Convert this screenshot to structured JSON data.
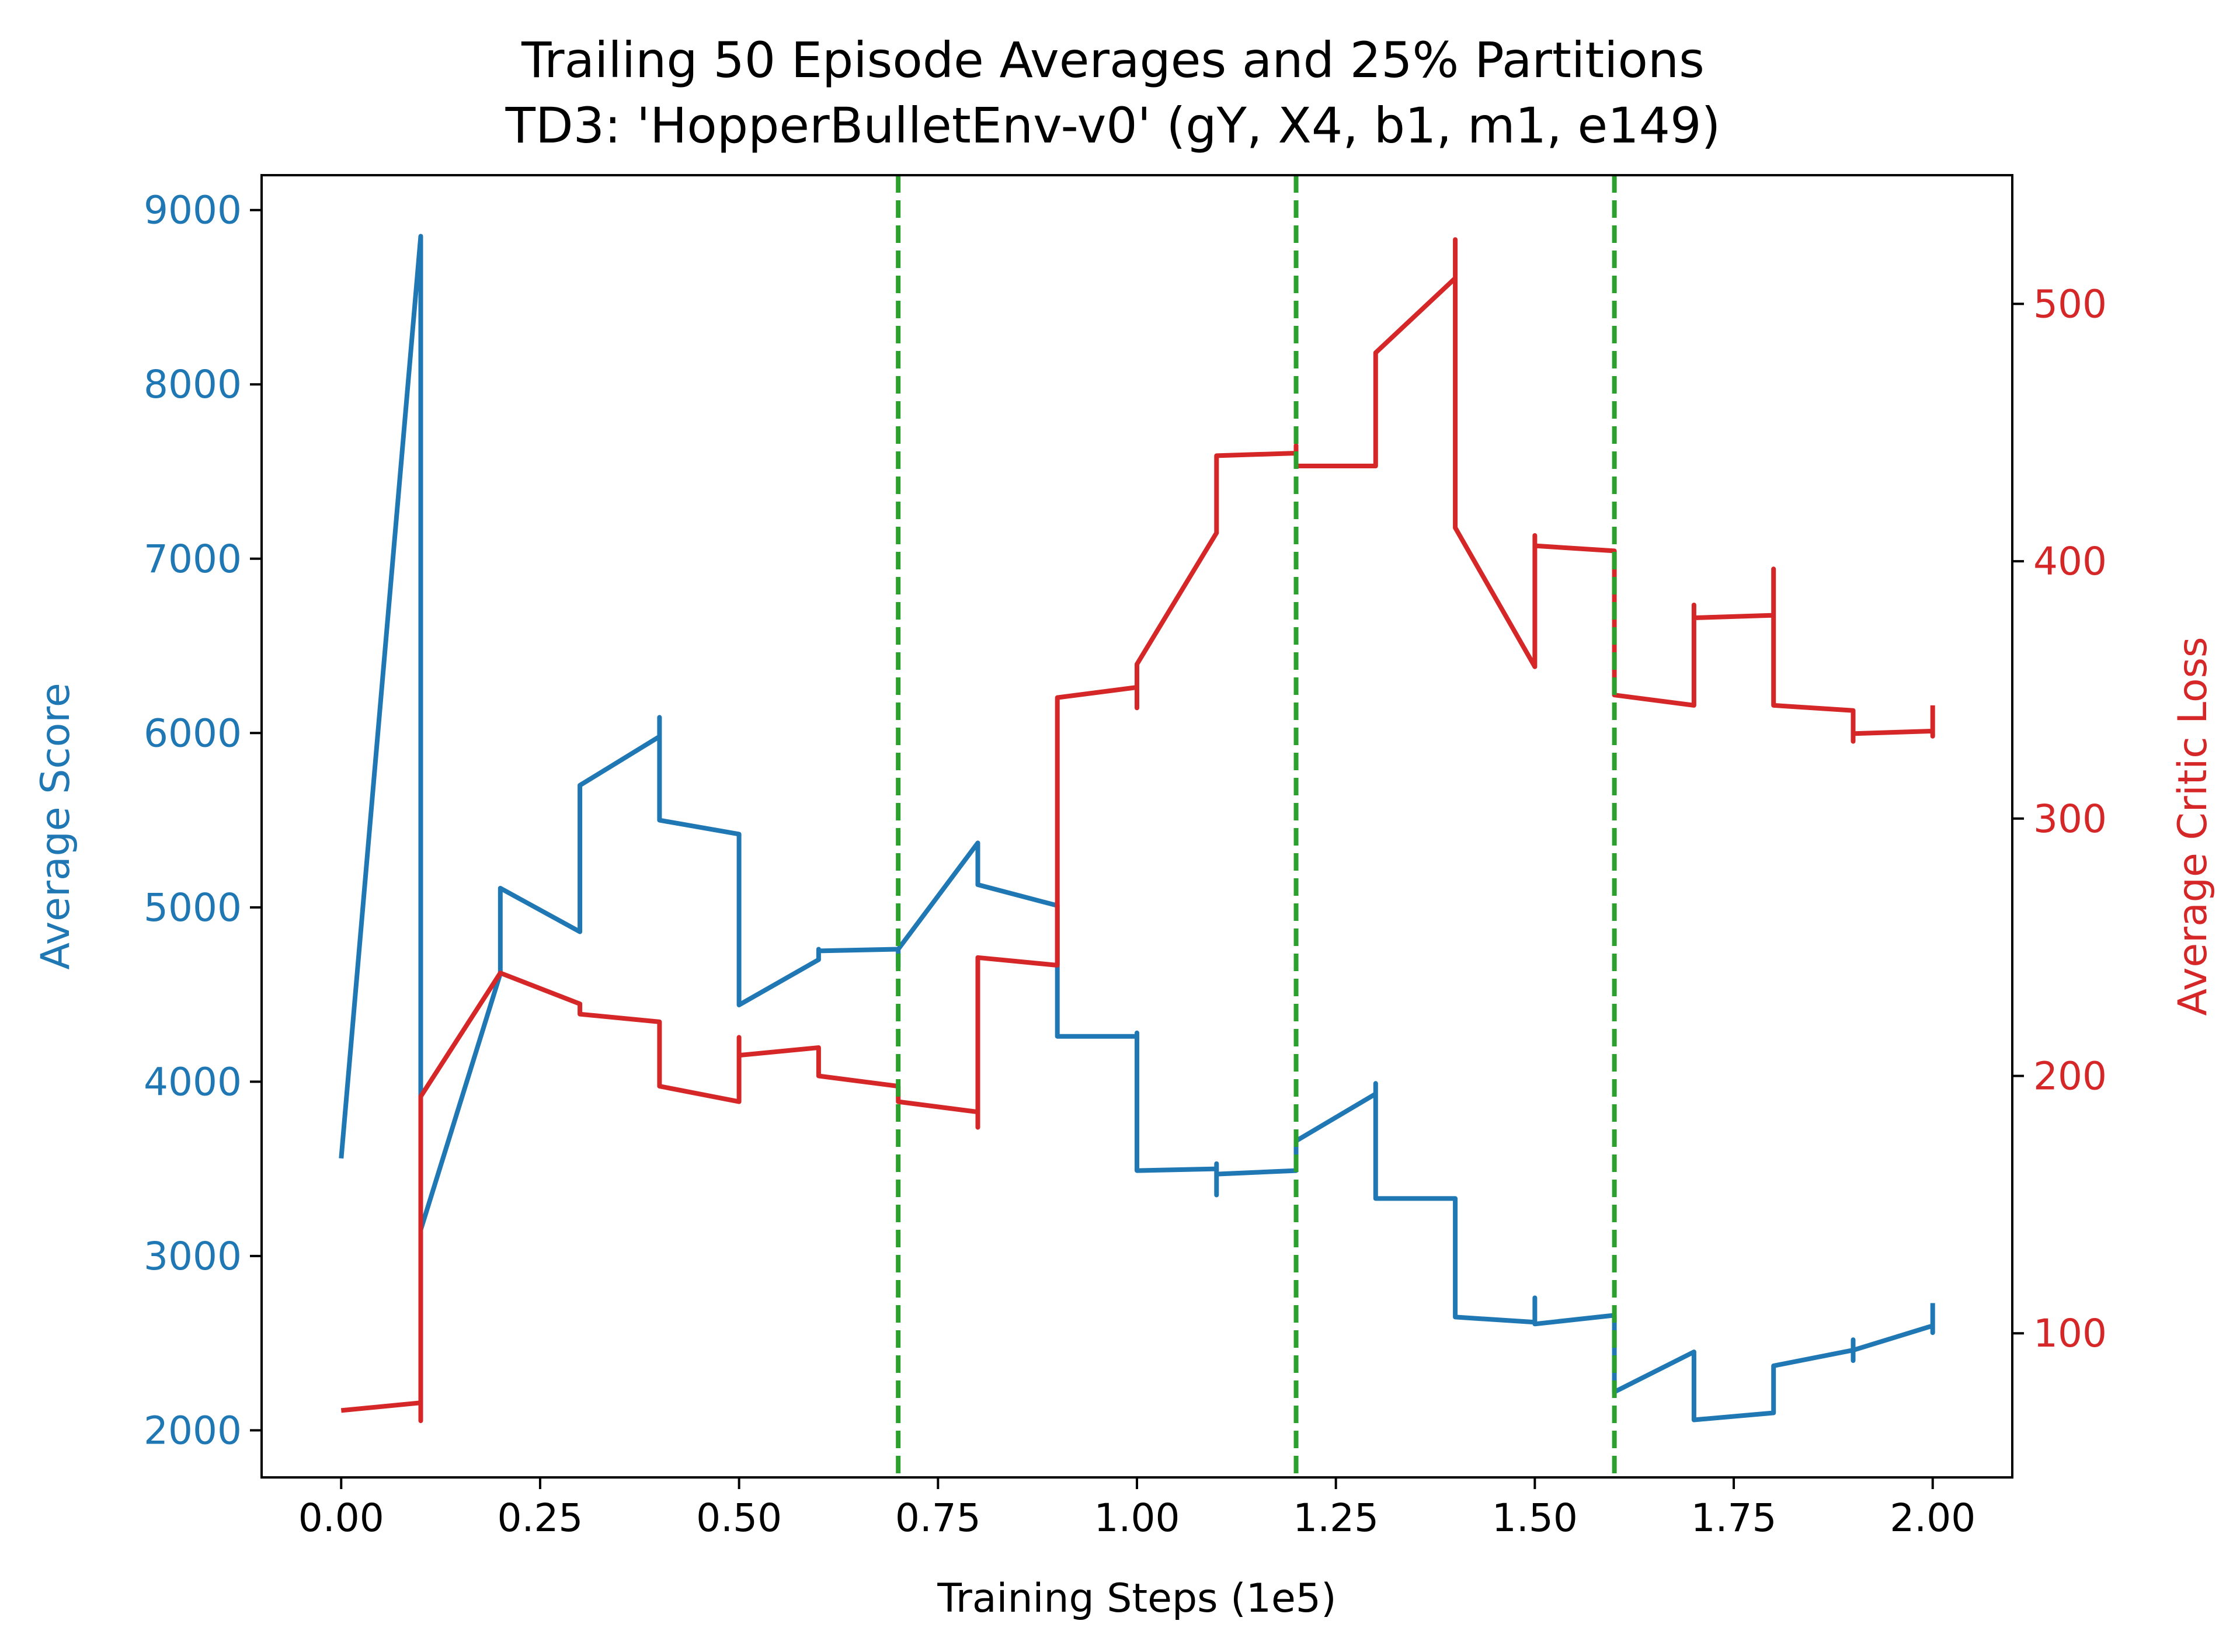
{
  "chart_data": {
    "type": "line",
    "title": "Trailing 50 Episode Averages and 25% Partitions",
    "subtitle": "TD3: 'HopperBulletEnv-v0' (gY, X4, b1, m1, e149)",
    "xlabel": "Training Steps (1e5)",
    "ylabel_left": "Average Score",
    "ylabel_right": "Average Critic Loss",
    "xlim": [
      -0.1,
      2.1
    ],
    "ylim_left": [
      1730,
      9200
    ],
    "ylim_right": [
      44,
      550
    ],
    "x_ticks": [
      "0.00",
      "0.25",
      "0.50",
      "0.75",
      "1.00",
      "1.25",
      "1.50",
      "1.75",
      "2.00"
    ],
    "y_ticks_left": [
      "2000",
      "3000",
      "4000",
      "5000",
      "6000",
      "7000",
      "8000",
      "9000"
    ],
    "y_ticks_right": [
      "100",
      "200",
      "300",
      "400",
      "500"
    ],
    "partitions": [
      0.7,
      1.2,
      1.6
    ],
    "colors": {
      "score": "#1f77b4",
      "loss": "#d62728",
      "partition": "#2ca02c",
      "axis": "#000000"
    },
    "series": [
      {
        "name": "Average Score",
        "axis": "left",
        "points": [
          [
            0.0,
            3560
          ],
          [
            0.1,
            8850
          ],
          [
            0.1,
            3150
          ],
          [
            0.2,
            4620
          ],
          [
            0.2,
            5110
          ],
          [
            0.3,
            4860
          ],
          [
            0.3,
            5700
          ],
          [
            0.4,
            5980
          ],
          [
            0.4,
            6090
          ],
          [
            0.4,
            5500
          ],
          [
            0.5,
            5420
          ],
          [
            0.5,
            4440
          ],
          [
            0.6,
            4700
          ],
          [
            0.6,
            4760
          ],
          [
            0.6,
            4750
          ],
          [
            0.7,
            4760
          ],
          [
            0.7,
            4660
          ],
          [
            0.7,
            4760
          ],
          [
            0.8,
            5370
          ],
          [
            0.8,
            5130
          ],
          [
            0.9,
            5010
          ],
          [
            0.9,
            4260
          ],
          [
            1.0,
            4260
          ],
          [
            1.0,
            4280
          ],
          [
            1.0,
            3490
          ],
          [
            1.1,
            3500
          ],
          [
            1.1,
            3350
          ],
          [
            1.1,
            3530
          ],
          [
            1.1,
            3470
          ],
          [
            1.2,
            3490
          ],
          [
            1.2,
            3660
          ],
          [
            1.3,
            3930
          ],
          [
            1.3,
            3990
          ],
          [
            1.3,
            3330
          ],
          [
            1.4,
            3330
          ],
          [
            1.4,
            2650
          ],
          [
            1.5,
            2620
          ],
          [
            1.5,
            2760
          ],
          [
            1.5,
            2610
          ],
          [
            1.6,
            2660
          ],
          [
            1.6,
            2220
          ],
          [
            1.7,
            2450
          ],
          [
            1.7,
            2060
          ],
          [
            1.8,
            2100
          ],
          [
            1.8,
            2370
          ],
          [
            1.9,
            2460
          ],
          [
            1.9,
            2400
          ],
          [
            1.9,
            2520
          ],
          [
            1.9,
            2460
          ],
          [
            2.0,
            2600
          ],
          [
            2.0,
            2560
          ],
          [
            2.0,
            2730
          ]
        ]
      },
      {
        "name": "Average Critic Loss",
        "axis": "right",
        "points": [
          [
            0.0,
            70
          ],
          [
            0.1,
            73
          ],
          [
            0.1,
            66
          ],
          [
            0.1,
            192
          ],
          [
            0.2,
            240
          ],
          [
            0.3,
            228
          ],
          [
            0.3,
            224
          ],
          [
            0.4,
            221
          ],
          [
            0.4,
            196
          ],
          [
            0.5,
            190
          ],
          [
            0.5,
            215
          ],
          [
            0.5,
            208
          ],
          [
            0.6,
            211
          ],
          [
            0.6,
            200
          ],
          [
            0.7,
            196
          ],
          [
            0.7,
            190
          ],
          [
            0.8,
            186
          ],
          [
            0.8,
            180
          ],
          [
            0.8,
            246
          ],
          [
            0.9,
            243
          ],
          [
            0.9,
            347
          ],
          [
            1.0,
            351
          ],
          [
            1.0,
            343
          ],
          [
            1.0,
            360
          ],
          [
            1.1,
            411
          ],
          [
            1.1,
            441
          ],
          [
            1.2,
            442
          ],
          [
            1.2,
            445
          ],
          [
            1.2,
            437
          ],
          [
            1.3,
            437
          ],
          [
            1.3,
            481
          ],
          [
            1.4,
            510
          ],
          [
            1.4,
            525
          ],
          [
            1.4,
            413
          ],
          [
            1.5,
            359
          ],
          [
            1.5,
            410
          ],
          [
            1.5,
            406
          ],
          [
            1.6,
            404
          ],
          [
            1.6,
            348
          ],
          [
            1.7,
            344
          ],
          [
            1.7,
            383
          ],
          [
            1.7,
            378
          ],
          [
            1.8,
            379
          ],
          [
            1.8,
            397
          ],
          [
            1.8,
            344
          ],
          [
            1.9,
            342
          ],
          [
            1.9,
            330
          ],
          [
            1.9,
            333
          ],
          [
            2.0,
            334
          ],
          [
            2.0,
            332
          ],
          [
            2.0,
            344
          ]
        ]
      }
    ]
  }
}
